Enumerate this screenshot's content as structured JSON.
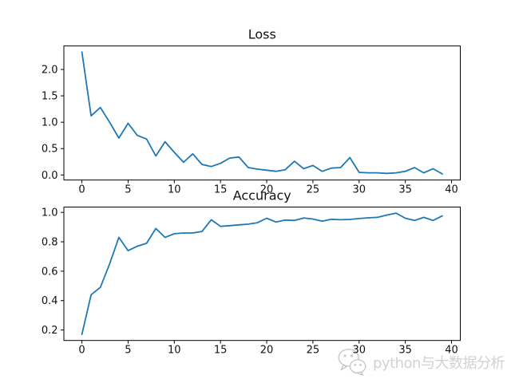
{
  "figure": {
    "background": "#ffffff",
    "frame_color": "#000000",
    "text_color": "#111111"
  },
  "watermark": {
    "text": "python与大数据分析",
    "icon": "wechat-logo-icon",
    "color": "#c9c9c9"
  },
  "chart_data": [
    {
      "type": "line",
      "title": "Loss",
      "xlabel": "",
      "ylabel": "",
      "legend": "none",
      "grid": false,
      "line_color": "#1f77b4",
      "x": [
        0,
        1,
        2,
        3,
        4,
        5,
        6,
        7,
        8,
        9,
        10,
        11,
        12,
        13,
        14,
        15,
        16,
        17,
        18,
        19,
        20,
        21,
        22,
        23,
        24,
        25,
        26,
        27,
        28,
        29,
        30,
        31,
        32,
        33,
        34,
        35,
        36,
        37,
        38,
        39
      ],
      "values": [
        2.33,
        1.12,
        1.28,
        1.0,
        0.7,
        0.98,
        0.75,
        0.68,
        0.36,
        0.63,
        0.43,
        0.24,
        0.4,
        0.2,
        0.16,
        0.22,
        0.32,
        0.34,
        0.14,
        0.11,
        0.09,
        0.07,
        0.1,
        0.26,
        0.12,
        0.18,
        0.07,
        0.13,
        0.14,
        0.33,
        0.05,
        0.04,
        0.04,
        0.03,
        0.04,
        0.07,
        0.14,
        0.04,
        0.12,
        0.02
      ],
      "xlim": [
        -1.95,
        40.95
      ],
      "ylim": [
        -0.0955,
        2.4455
      ],
      "xticks": [
        "0",
        "5",
        "10",
        "15",
        "20",
        "25",
        "30",
        "35",
        "40"
      ],
      "yticks": [
        "0.0",
        "0.5",
        "1.0",
        "1.5",
        "2.0"
      ]
    },
    {
      "type": "line",
      "title": "Accuracy",
      "xlabel": "",
      "ylabel": "",
      "legend": "none",
      "grid": false,
      "line_color": "#1f77b4",
      "x": [
        0,
        1,
        2,
        3,
        4,
        5,
        6,
        7,
        8,
        9,
        10,
        11,
        12,
        13,
        14,
        15,
        16,
        17,
        18,
        19,
        20,
        21,
        22,
        23,
        24,
        25,
        26,
        27,
        28,
        29,
        30,
        31,
        32,
        33,
        34,
        35,
        36,
        37,
        38,
        39
      ],
      "values": [
        0.17,
        0.44,
        0.49,
        0.65,
        0.83,
        0.74,
        0.77,
        0.79,
        0.89,
        0.83,
        0.855,
        0.86,
        0.86,
        0.87,
        0.95,
        0.905,
        0.91,
        0.915,
        0.92,
        0.93,
        0.96,
        0.935,
        0.948,
        0.945,
        0.962,
        0.955,
        0.94,
        0.953,
        0.95,
        0.952,
        0.958,
        0.963,
        0.966,
        0.982,
        0.995,
        0.96,
        0.945,
        0.966,
        0.945,
        0.976
      ],
      "xlim": [
        -1.95,
        40.95
      ],
      "ylim": [
        0.12875,
        1.03625
      ],
      "xticks": [
        "0",
        "5",
        "10",
        "15",
        "20",
        "25",
        "30",
        "35",
        "40"
      ],
      "yticks": [
        "0.2",
        "0.4",
        "0.6",
        "0.8",
        "1.0"
      ]
    }
  ]
}
